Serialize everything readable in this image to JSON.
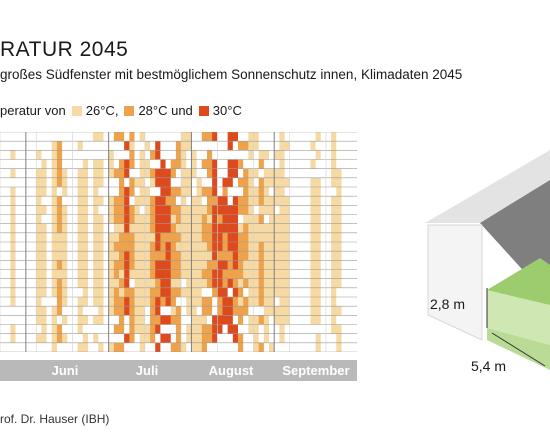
{
  "title": "RATUR 2045",
  "subtitle": "großes Südfenster mit bestmöglichem Sonnenschutz innen, Klimadaten 2045",
  "legend": {
    "prefix": "peratur von",
    "items": [
      {
        "label": "26°C,",
        "color": "#f6d9a3"
      },
      {
        "label": "28°C und",
        "color": "#eda24b"
      },
      {
        "label": "30°C",
        "color": "#dd4a1e"
      }
    ]
  },
  "source": "rof. Dr. Hauser (IBH)",
  "house": {
    "height_label": "2,8 m",
    "width_label": "5,4 m"
  },
  "chart_data": {
    "type": "heatmap",
    "title": "RATUR 2045",
    "x_categories": [
      "",
      "Juni",
      "Juli",
      "August",
      "September"
    ],
    "levels": [
      {
        "label": "26°C,",
        "color": "#f6d9a3"
      },
      {
        "label": "28°C und",
        "color": "#eda24b"
      },
      {
        "label": "30°C",
        "color": "#dd4a1e"
      }
    ],
    "months_visible": [
      {
        "label": "",
        "days": 5
      },
      {
        "label": "Juni",
        "days": 16
      },
      {
        "label": "Juli",
        "days": 16
      },
      {
        "label": "August",
        "days": 16
      },
      {
        "label": "September",
        "days": 16
      }
    ],
    "hours_per_day": 24,
    "day_max_level": [
      0,
      0,
      1,
      0,
      0,
      0,
      0,
      1,
      1,
      0,
      1,
      2,
      1,
      0,
      0,
      1,
      1,
      0,
      1,
      1,
      0,
      1,
      2,
      2,
      3,
      2,
      1,
      1,
      1,
      2,
      3,
      3,
      3,
      2,
      2,
      1,
      1,
      1,
      1,
      2,
      2,
      3,
      3,
      3,
      3,
      3,
      2,
      2,
      1,
      1,
      2,
      1,
      1,
      1,
      1,
      1,
      0,
      0,
      0,
      0,
      1,
      1,
      0,
      0,
      1,
      1,
      0,
      0,
      0
    ]
  }
}
